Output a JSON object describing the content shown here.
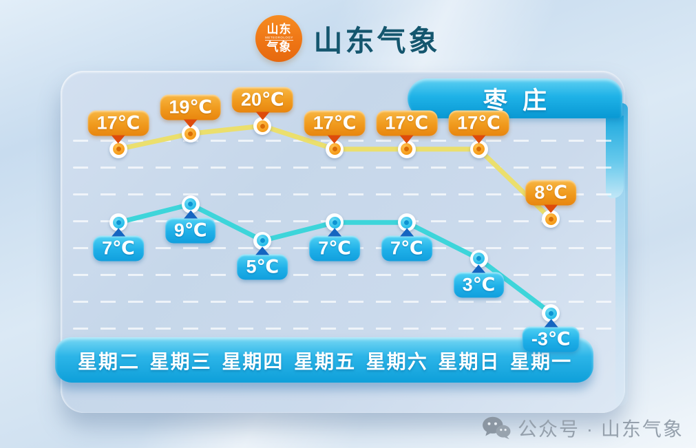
{
  "header": {
    "logo": {
      "line1": "山东",
      "line2": "METEOROLOGY",
      "line3": "气象"
    },
    "title": "山东气象"
  },
  "panel": {
    "city": "枣庄"
  },
  "chart_data": {
    "type": "line",
    "categories": [
      "星期二",
      "星期三",
      "星期四",
      "星期五",
      "星期六",
      "星期日",
      "星期一"
    ],
    "unit": "℃",
    "series": [
      {
        "name": "high-temperature",
        "values": [
          17,
          19,
          20,
          17,
          17,
          17,
          8
        ],
        "line_color": "#ebdf6d",
        "marker_color": "#f59b19",
        "label_style": "orange"
      },
      {
        "name": "low-temperature",
        "values": [
          7,
          9,
          5,
          7,
          7,
          3,
          -3
        ],
        "line_color": "#3dd5da",
        "marker_color": "#28bdea",
        "label_style": "cyan"
      }
    ],
    "grid": "horizontal-dashed",
    "legend": "none",
    "colors": {
      "high_label": "#f09a1d",
      "low_label": "#1fb0e8",
      "day_bar": "#2cb5e8",
      "ribbon": "#1fb2e7"
    }
  },
  "footer": {
    "icon": "wechat-icon",
    "text": "公众号 · 山东气象"
  }
}
